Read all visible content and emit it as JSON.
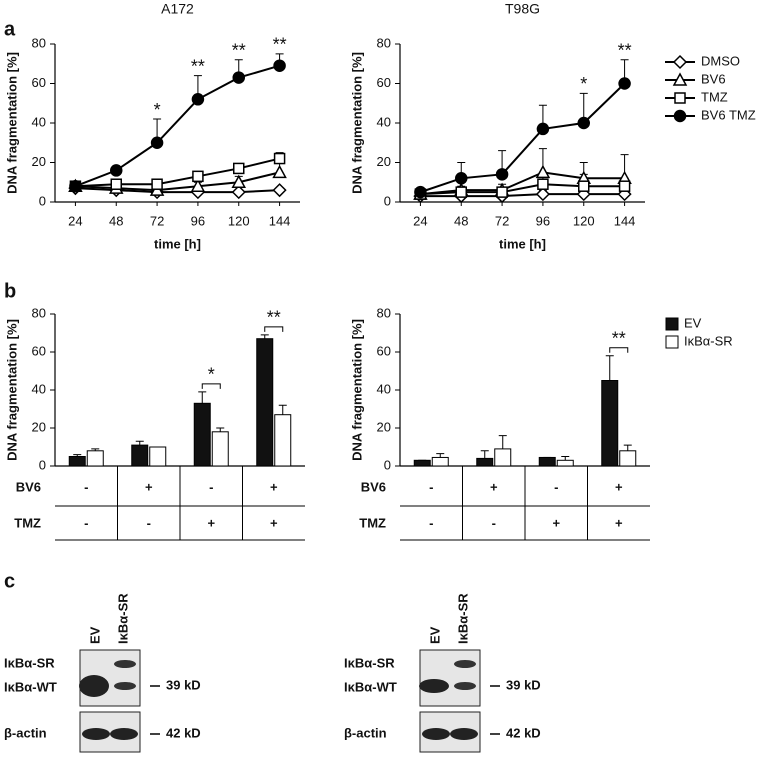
{
  "panel_labels": [
    "a",
    "b",
    "c"
  ],
  "chart_data": [
    {
      "type": "line",
      "title": "A172",
      "xlabel": "time [h]",
      "ylabel": "DNA fragmentation [%]",
      "categories": [
        "24",
        "48",
        "72",
        "96",
        "120",
        "144"
      ],
      "ylim": [
        0,
        80
      ],
      "yticks": [
        0,
        20,
        40,
        60,
        80
      ],
      "series": [
        {
          "marker": "diamond",
          "fill": "#ffffff",
          "color": "#000000",
          "values": [
            7,
            6,
            5,
            5,
            5,
            6
          ],
          "errors": [
            1,
            1,
            1,
            1,
            1,
            1
          ]
        },
        {
          "marker": "triangle",
          "fill": "#ffffff",
          "color": "#000000",
          "values": [
            8,
            7,
            6,
            8,
            10,
            15
          ],
          "errors": [
            1,
            1,
            1,
            2,
            3,
            5
          ]
        },
        {
          "marker": "square",
          "fill": "#ffffff",
          "color": "#000000",
          "values": [
            8,
            9,
            9,
            13,
            17,
            22
          ],
          "errors": [
            1,
            1,
            1,
            1,
            2,
            3
          ]
        },
        {
          "marker": "circle",
          "fill": "#000000",
          "color": "#000000",
          "values": [
            8,
            16,
            30,
            52,
            63,
            69
          ],
          "errors": [
            1,
            2,
            12,
            12,
            9,
            6
          ]
        }
      ],
      "significance": [
        null,
        null,
        "*",
        "**",
        "**",
        "**"
      ]
    },
    {
      "type": "line",
      "title": "T98G",
      "xlabel": "time [h]",
      "ylabel": "DNA fragmentation [%]",
      "categories": [
        "24",
        "48",
        "72",
        "96",
        "120",
        "144"
      ],
      "ylim": [
        0,
        80
      ],
      "yticks": [
        0,
        20,
        40,
        60,
        80
      ],
      "legend": "right",
      "series": [
        {
          "name": "DMSO",
          "marker": "diamond",
          "fill": "#ffffff",
          "color": "#000000",
          "values": [
            3,
            3,
            3,
            4,
            4,
            4
          ],
          "errors": [
            1,
            1,
            1,
            2,
            1,
            2
          ]
        },
        {
          "name": "BV6",
          "marker": "triangle",
          "fill": "#ffffff",
          "color": "#000000",
          "values": [
            4,
            6,
            6,
            15,
            12,
            12
          ],
          "errors": [
            1,
            5,
            3,
            12,
            8,
            12
          ]
        },
        {
          "name": "TMZ",
          "marker": "square",
          "fill": "#ffffff",
          "color": "#000000",
          "values": [
            4,
            5,
            5,
            9,
            8,
            8
          ],
          "errors": [
            1,
            3,
            2,
            4,
            6,
            4
          ]
        },
        {
          "name": "BV6 TMZ",
          "marker": "circle",
          "fill": "#000000",
          "color": "#000000",
          "values": [
            5,
            12,
            14,
            37,
            40,
            60
          ],
          "errors": [
            2,
            8,
            12,
            12,
            15,
            12
          ]
        }
      ],
      "significance": [
        null,
        null,
        null,
        null,
        "*",
        "**"
      ]
    },
    {
      "type": "bar",
      "ylabel": "DNA fragmentation [%]",
      "ylim": [
        0,
        80
      ],
      "yticks": [
        0,
        20,
        40,
        60,
        80
      ],
      "series": [
        {
          "color": "#111111",
          "values": [
            5,
            11,
            33,
            67
          ],
          "errors": [
            1,
            2,
            6,
            2
          ]
        },
        {
          "color": "#ffffff",
          "values": [
            8,
            10,
            18,
            27
          ],
          "errors": [
            1,
            0,
            2,
            5
          ]
        }
      ],
      "significance": [
        null,
        null,
        "*",
        "**"
      ],
      "conditions": [
        {
          "name": "BV6",
          "values": [
            "-",
            "+",
            "-",
            "+"
          ]
        },
        {
          "name": "TMZ",
          "values": [
            "-",
            "-",
            "+",
            "+"
          ]
        }
      ]
    },
    {
      "type": "bar",
      "ylabel": "DNA fragmentation [%]",
      "ylim": [
        0,
        80
      ],
      "yticks": [
        0,
        20,
        40,
        60,
        80
      ],
      "legend": "right",
      "series": [
        {
          "name": "EV",
          "color": "#111111",
          "values": [
            3,
            4,
            4.5,
            45
          ],
          "errors": [
            0,
            4,
            0,
            13
          ]
        },
        {
          "name": "IκBα-SR",
          "color": "#ffffff",
          "values": [
            4.5,
            9,
            3,
            8
          ],
          "errors": [
            2,
            7,
            2,
            3
          ]
        }
      ],
      "significance": [
        null,
        null,
        null,
        "**"
      ],
      "conditions": [
        {
          "name": "BV6",
          "values": [
            "-",
            "+",
            "-",
            "+"
          ]
        },
        {
          "name": "TMZ",
          "values": [
            "-",
            "-",
            "+",
            "+"
          ]
        }
      ]
    }
  ],
  "blots": [
    {
      "lanes": [
        "EV",
        "IκBα-SR"
      ],
      "rows": [
        {
          "labels": [
            "IκBα-SR",
            "IκBα-WT"
          ],
          "size": "39 kD"
        },
        {
          "labels": [
            "β-actin"
          ],
          "size": "42 kD"
        }
      ]
    },
    {
      "lanes": [
        "EV",
        "IκBα-SR"
      ],
      "rows": [
        {
          "labels": [
            "IκBα-SR",
            "IκBα-WT"
          ],
          "size": "39 kD"
        },
        {
          "labels": [
            "β-actin"
          ],
          "size": "42 kD"
        }
      ]
    }
  ]
}
